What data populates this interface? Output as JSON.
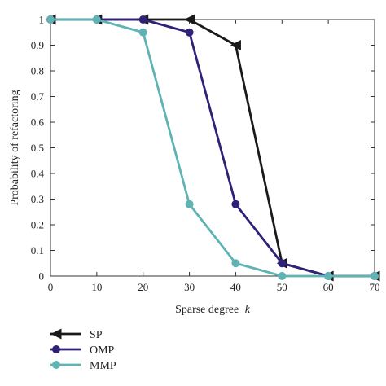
{
  "chart_data": {
    "type": "line",
    "xlabel": "Sparse degree",
    "xlabel_var": "k",
    "ylabel": "Probability of refactoring",
    "xlim": [
      0,
      70
    ],
    "ylim": [
      0,
      1
    ],
    "xticks": [
      0,
      10,
      20,
      30,
      40,
      50,
      60,
      70
    ],
    "yticks": [
      0,
      0.1,
      0.2,
      0.3,
      0.4,
      0.5,
      0.6,
      0.7,
      0.8,
      0.9,
      1
    ],
    "ytick_labels": [
      "0",
      "0.1",
      "0.2",
      "0.3",
      "0.4",
      "0.5",
      "0.6",
      "0.7",
      "0.8",
      "0.9",
      "1"
    ],
    "grid": false,
    "legend_position": "below",
    "series": [
      {
        "name": "SP",
        "color": "#1a1a1a",
        "marker": "triangle-left",
        "x": [
          0,
          10,
          20,
          30,
          40,
          50,
          60,
          70
        ],
        "y": [
          1,
          1,
          1,
          1,
          0.9,
          0.05,
          0,
          0
        ]
      },
      {
        "name": "OMP",
        "color": "#2e2278",
        "marker": "circle",
        "x": [
          0,
          10,
          20,
          30,
          40,
          50,
          60,
          70
        ],
        "y": [
          1,
          1,
          1,
          0.95,
          0.28,
          0.05,
          0,
          0
        ]
      },
      {
        "name": "MMP",
        "color": "#5fb3b3",
        "marker": "circle",
        "x": [
          0,
          10,
          20,
          30,
          40,
          50,
          60,
          70
        ],
        "y": [
          1,
          1,
          0.95,
          0.28,
          0.05,
          0,
          0,
          0
        ]
      }
    ]
  }
}
